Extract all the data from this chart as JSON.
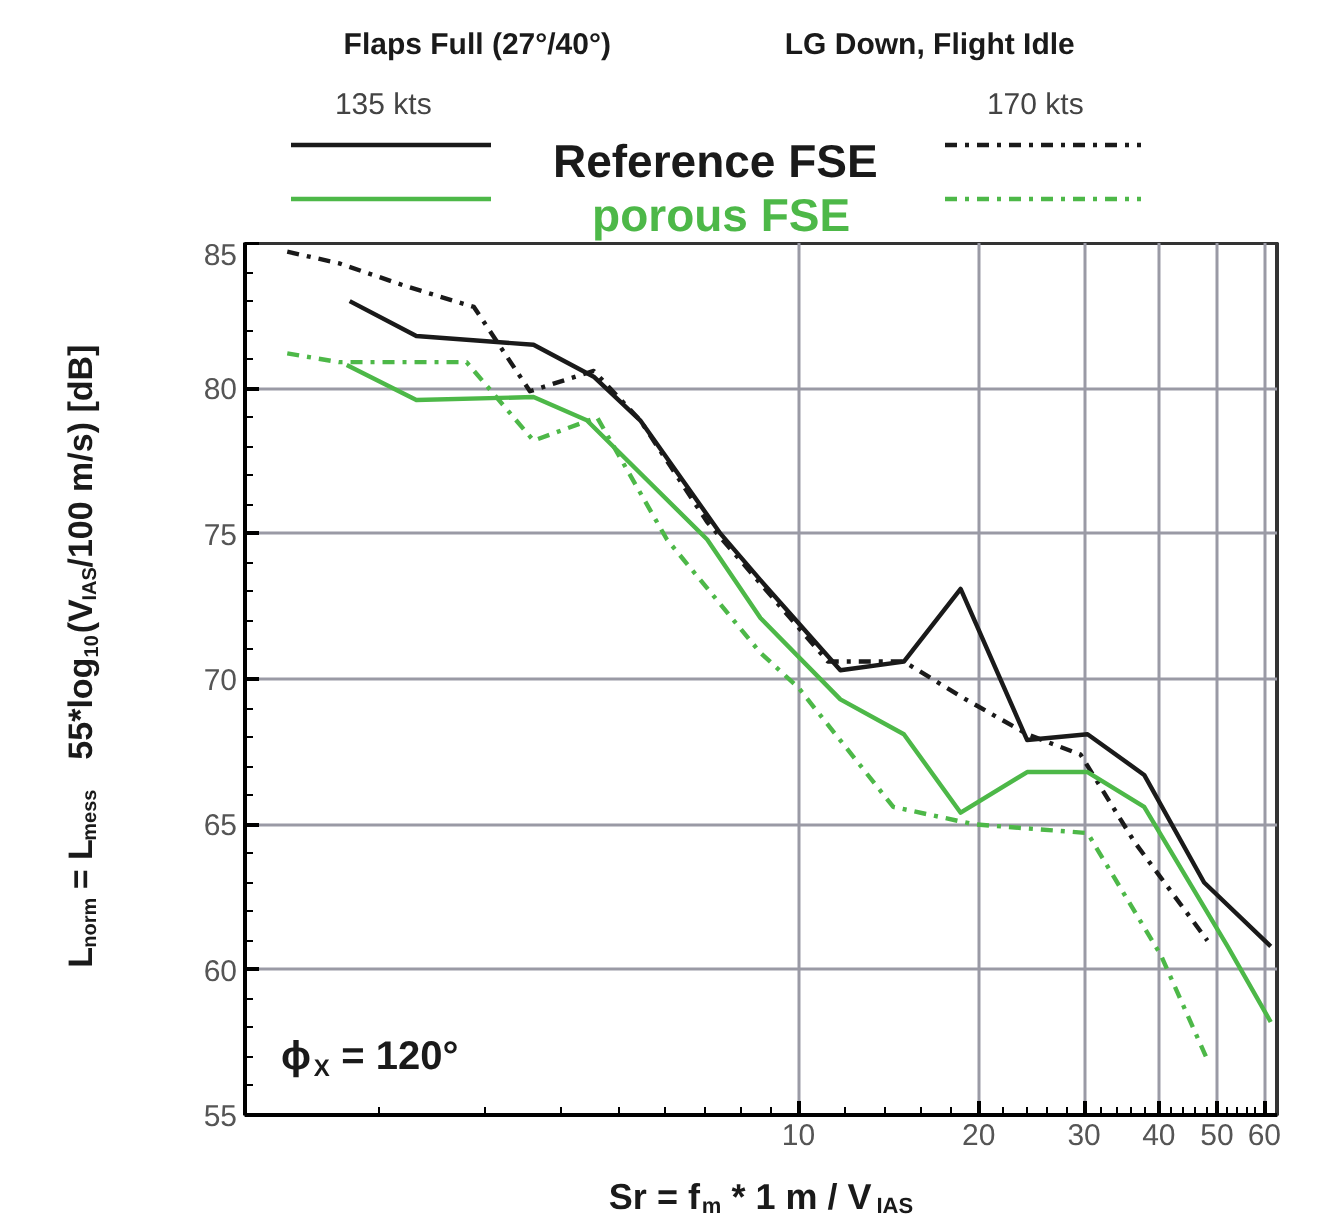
{
  "chart_data": {
    "type": "line",
    "title": "Flaps Full (27°/40°)",
    "subtitle": "LG Down, Flight Idle",
    "xlabel": "Sr = f$_{m}$ * 1 m / V$_{IAS}$",
    "ylabel": "L$_{norm}$ = L$_{mess}$   55*log$_{10}$(V$_{IAS}$/100 m/s) [dB]",
    "annotations": [
      "135 kts",
      "170 kts",
      "ϕ$_{X}$ = 120°"
    ],
    "log": "x",
    "xlim": [
      1.19,
      63
    ],
    "ylim": [
      55,
      85
    ],
    "xticks": [
      {
        "value": 2,
        "label": null
      },
      {
        "value": 3,
        "label": null
      },
      {
        "value": 4,
        "label": null
      },
      {
        "value": 5,
        "label": null
      },
      {
        "value": 6,
        "label": null
      },
      {
        "value": 7,
        "label": null
      },
      {
        "value": 8,
        "label": null
      },
      {
        "value": 9,
        "label": null
      },
      10,
      {
        "value": 12,
        "label": null
      },
      {
        "value": 14,
        "label": null
      },
      {
        "value": 16,
        "label": null
      },
      {
        "value": 18,
        "label": null
      },
      20,
      {
        "value": 22,
        "label": null
      },
      {
        "value": 24,
        "label": null
      },
      {
        "value": 26,
        "label": null
      },
      {
        "value": 28,
        "label": null
      },
      30,
      {
        "value": 32,
        "label": null
      },
      {
        "value": 34,
        "label": null
      },
      {
        "value": 36,
        "label": null
      },
      {
        "value": 38,
        "label": null
      },
      40,
      {
        "value": 42,
        "label": null
      },
      {
        "value": 44,
        "label": null
      },
      {
        "value": 46,
        "label": null
      },
      {
        "value": 48,
        "label": null
      },
      50,
      {
        "value": 52,
        "label": null
      },
      {
        "value": 54,
        "label": null
      },
      {
        "value": 56,
        "label": null
      },
      {
        "value": 58,
        "label": null
      },
      60
    ],
    "yticks": [
      55,
      {
        "value": 56,
        "label": null
      },
      {
        "value": 57,
        "label": null
      },
      {
        "value": 58,
        "label": null
      },
      {
        "value": 59,
        "label": null
      },
      60,
      {
        "value": 61,
        "label": null
      },
      {
        "value": 62,
        "label": null
      },
      {
        "value": 63,
        "label": null
      },
      {
        "value": 64,
        "label": null
      },
      65,
      {
        "value": 66,
        "label": null
      },
      {
        "value": 67,
        "label": null
      },
      {
        "value": 68,
        "label": null
      },
      {
        "value": 69,
        "label": null
      },
      70,
      {
        "value": 71,
        "label": null
      },
      {
        "value": 72,
        "label": null
      },
      {
        "value": 73,
        "label": null
      },
      {
        "value": 74,
        "label": null
      },
      75,
      {
        "value": 76,
        "label": null
      },
      {
        "value": 77,
        "label": null
      },
      {
        "value": 78,
        "label": null
      },
      {
        "value": 79,
        "label": null
      },
      80,
      {
        "value": 81,
        "label": null
      },
      {
        "value": 82,
        "label": null
      },
      {
        "value": 83,
        "label": null
      },
      {
        "value": 84,
        "label": null
      },
      85
    ],
    "grid": true,
    "legend": "top",
    "marker": "none",
    "series": [
      {
        "name": "Reference FSE",
        "color": "#1a1a1a",
        "line_style": "solid",
        "x": [
          1.78,
          2.3,
          3.61,
          4.55,
          5.44,
          7.41,
          8.64,
          11.75,
          15.0,
          18.66,
          24.1,
          30.4,
          37.8,
          47.6,
          61.5
        ],
        "values": [
          83.0,
          81.8,
          81.5,
          80.4,
          78.9,
          75.0,
          73.4,
          70.3,
          70.6,
          73.1,
          67.9,
          68.1,
          66.7,
          63.0,
          60.8
        ]
      },
      {
        "color": "#1a1a1a",
        "line_style": "dashdot",
        "x": [
          1.4,
          1.71,
          2.22,
          2.87,
          3.56,
          4.55,
          5.44,
          7.04,
          11.2,
          15.0,
          18.66,
          24.1,
          29.6,
          36.4,
          48.2
        ],
        "values": [
          84.7,
          84.3,
          83.5,
          82.8,
          79.9,
          80.6,
          78.9,
          75.4,
          70.6,
          70.6,
          69.4,
          68.1,
          67.4,
          64.4,
          61.0
        ]
      },
      {
        "name": "porous FSE",
        "color": "#4db848",
        "line_style": "solid",
        "x": [
          1.76,
          2.3,
          3.61,
          4.43,
          7.04,
          8.64,
          11.75,
          15.0,
          18.66,
          24.1,
          30.4,
          37.8,
          52.1,
          61.5
        ],
        "values": [
          80.8,
          79.6,
          79.7,
          78.9,
          74.8,
          72.1,
          69.3,
          68.1,
          65.4,
          66.8,
          66.8,
          65.6,
          60.8,
          58.2
        ]
      },
      {
        "color": "#4db848",
        "line_style": "dashdot",
        "x": [
          1.4,
          1.71,
          2.79,
          3.61,
          4.61,
          6.03,
          8.64,
          10.0,
          14.4,
          19.65,
          30.4,
          40.3,
          48.2
        ],
        "values": [
          81.2,
          80.9,
          80.9,
          78.2,
          79.0,
          74.8,
          70.9,
          69.7,
          65.6,
          65.0,
          64.7,
          60.5,
          56.9
        ]
      }
    ]
  }
}
